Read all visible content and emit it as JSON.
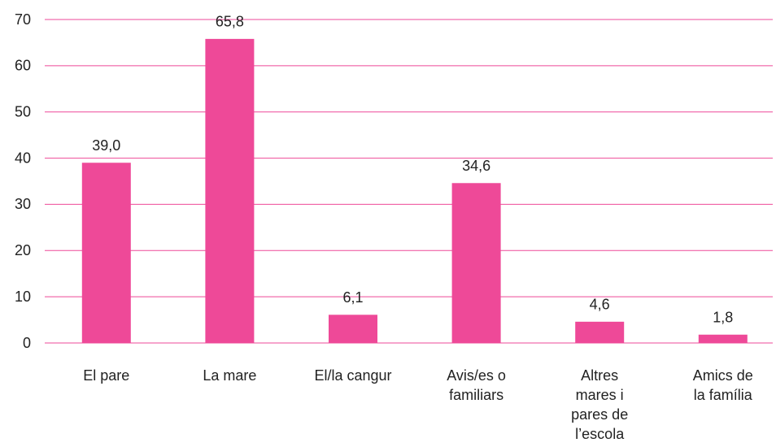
{
  "chart_data": {
    "type": "bar",
    "categories": [
      "El pare",
      "La mare",
      "El/la cangur",
      "Avis/es o\nfamiliars",
      "Altres\nmares i\npares de\nl’escola",
      "Amics de\nla família"
    ],
    "values": [
      39.0,
      65.8,
      6.1,
      34.6,
      4.6,
      1.8
    ],
    "value_labels": [
      "39,0",
      "65,8",
      "6,1",
      "34,6",
      "4,6",
      "1,8"
    ],
    "color": "#ee4998",
    "ylim": [
      0,
      70
    ],
    "yticks": [
      0,
      10,
      20,
      30,
      40,
      50,
      60,
      70
    ],
    "grid": true,
    "grid_color": "#ee4998"
  }
}
